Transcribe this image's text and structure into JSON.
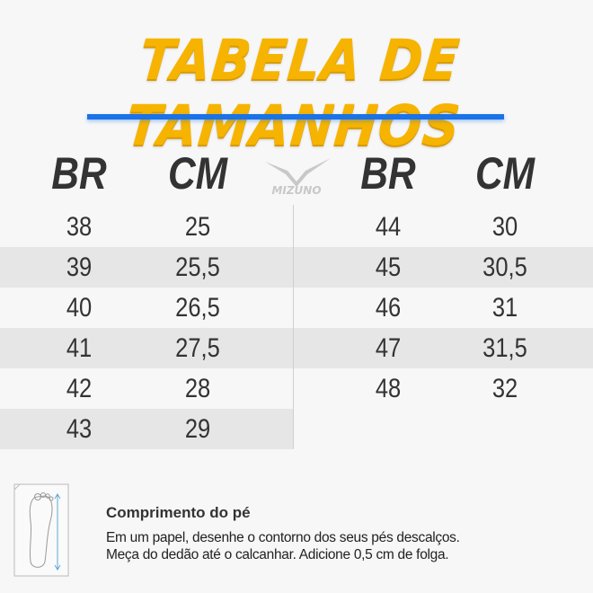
{
  "title": "TABELA DE TAMANHOS",
  "colors": {
    "title": "#f6b400",
    "accent_rule": "#1a73e8",
    "stripe": "#e6e6e6"
  },
  "brand_logo": "MIZUNO",
  "headers": [
    "BR",
    "CM",
    "BR",
    "CM"
  ],
  "left_table": [
    {
      "br": "38",
      "cm": "25"
    },
    {
      "br": "39",
      "cm": "25,5"
    },
    {
      "br": "40",
      "cm": "26,5"
    },
    {
      "br": "41",
      "cm": "27,5"
    },
    {
      "br": "42",
      "cm": "28"
    },
    {
      "br": "43",
      "cm": "29"
    }
  ],
  "right_table": [
    {
      "br": "44",
      "cm": "30"
    },
    {
      "br": "45",
      "cm": "30,5"
    },
    {
      "br": "46",
      "cm": "31"
    },
    {
      "br": "47",
      "cm": "31,5"
    },
    {
      "br": "48",
      "cm": "32"
    }
  ],
  "footer": {
    "icon": "foot-measure-icon",
    "title": "Comprimento do pé",
    "line1": "Em um papel, desenhe o contorno dos seus pés descalços.",
    "line2": "Meça do dedão até o calcanhar. Adicione 0,5 cm de folga."
  }
}
